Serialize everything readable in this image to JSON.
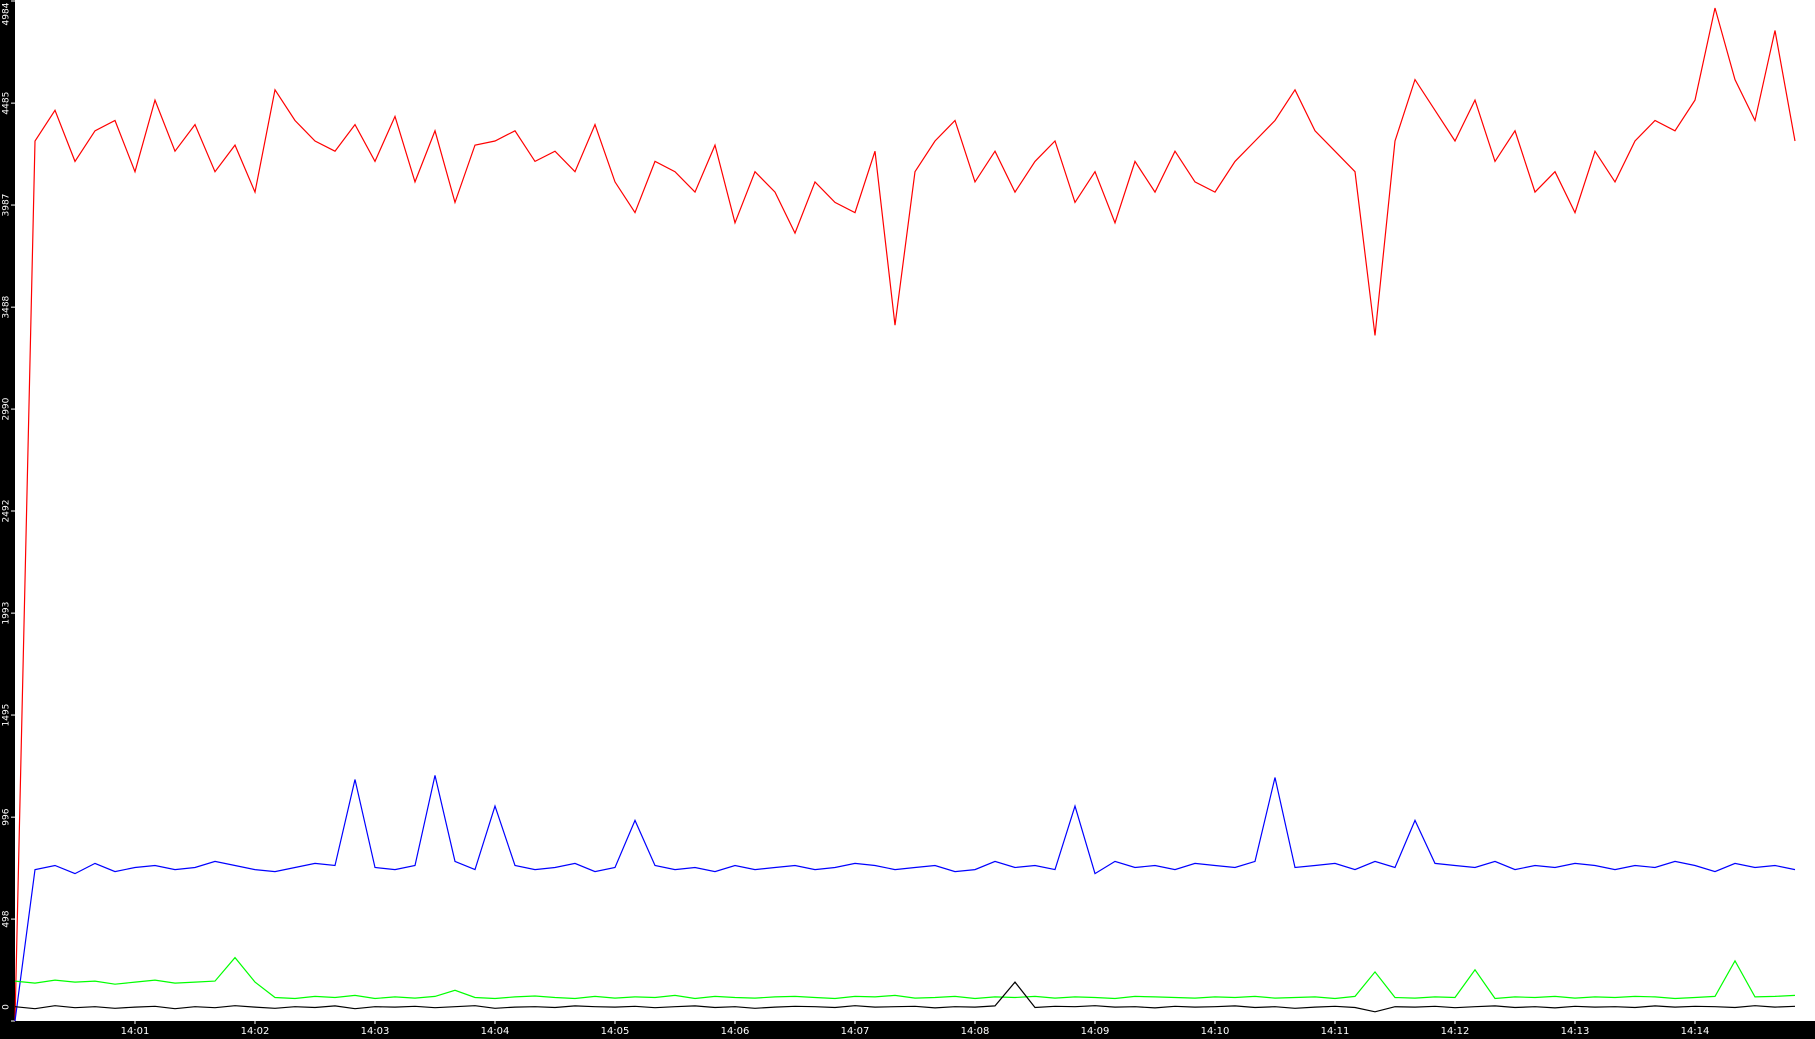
{
  "chart_data": {
    "type": "line",
    "categories": [
      null,
      null,
      null,
      null,
      null,
      null,
      "14:01",
      null,
      null,
      null,
      null,
      null,
      "14:02",
      null,
      null,
      null,
      null,
      null,
      "14:03",
      null,
      null,
      null,
      null,
      null,
      "14:04",
      null,
      null,
      null,
      null,
      null,
      "14:05",
      null,
      null,
      null,
      null,
      null,
      "14:06",
      null,
      null,
      null,
      null,
      null,
      "14:07",
      null,
      null,
      null,
      null,
      null,
      "14:08",
      null,
      null,
      null,
      null,
      null,
      "14:09",
      null,
      null,
      null,
      null,
      null,
      "14:10",
      null,
      null,
      null,
      null,
      null,
      "14:11",
      null,
      null,
      null,
      null,
      null,
      "14:12",
      null,
      null,
      null,
      null,
      null,
      "14:13",
      null,
      null,
      null,
      null,
      null,
      "14:14",
      null,
      null,
      null,
      null,
      null
    ],
    "series": [
      {
        "color": "#ff0000",
        "values": [
          0,
          4300,
          4450,
          4200,
          4350,
          4400,
          4150,
          4500,
          4250,
          4380,
          4150,
          4280,
          4050,
          4550,
          4400,
          4300,
          4250,
          4380,
          4200,
          4420,
          4100,
          4350,
          4000,
          4280,
          4300,
          4350,
          4200,
          4250,
          4150,
          4380,
          4100,
          3950,
          4200,
          4150,
          4050,
          4280,
          3900,
          4150,
          4050,
          3850,
          4100,
          4000,
          3950,
          4250,
          3400,
          4150,
          4300,
          4400,
          4100,
          4250,
          4050,
          4200,
          4300,
          4000,
          4150,
          3900,
          4200,
          4050,
          4250,
          4100,
          4050,
          4200,
          4300,
          4400,
          4550,
          4350,
          4250,
          4150,
          3350,
          4300,
          4600,
          4450,
          4300,
          4500,
          4200,
          4350,
          4050,
          4150,
          3950,
          4250,
          4100,
          4300,
          4400,
          4350,
          4500,
          4950,
          4600,
          4400,
          4840,
          4300
        ]
      },
      {
        "color": "#0000ff",
        "values": [
          0,
          740,
          760,
          720,
          770,
          730,
          750,
          760,
          740,
          750,
          780,
          760,
          740,
          730,
          750,
          770,
          760,
          1180,
          750,
          740,
          760,
          1200,
          780,
          740,
          1050,
          760,
          740,
          750,
          770,
          730,
          750,
          980,
          760,
          740,
          750,
          730,
          760,
          740,
          750,
          760,
          740,
          750,
          770,
          760,
          740,
          750,
          760,
          730,
          740,
          780,
          750,
          760,
          740,
          1050,
          720,
          780,
          750,
          760,
          740,
          770,
          760,
          750,
          780,
          1190,
          750,
          760,
          770,
          740,
          780,
          750,
          980,
          770,
          760,
          750,
          780,
          740,
          760,
          750,
          770,
          760,
          740,
          760,
          750,
          780,
          760,
          730,
          770,
          750,
          760,
          740
        ]
      },
      {
        "color": "#00ff00",
        "values": [
          195,
          185,
          200,
          190,
          195,
          180,
          190,
          200,
          185,
          190,
          195,
          310,
          190,
          115,
          110,
          120,
          115,
          125,
          110,
          118,
          112,
          120,
          150,
          115,
          110,
          118,
          122,
          115,
          110,
          120,
          112,
          118,
          115,
          125,
          110,
          120,
          115,
          112,
          118,
          120,
          115,
          110,
          120,
          118,
          125,
          112,
          115,
          120,
          110,
          118,
          115,
          120,
          112,
          118,
          115,
          110,
          120,
          118,
          115,
          112,
          118,
          115,
          120,
          112,
          115,
          118,
          110,
          120,
          240,
          115,
          112,
          118,
          115,
          250,
          110,
          118,
          115,
          120,
          112,
          118,
          115,
          120,
          118,
          110,
          115,
          120,
          294,
          118,
          120,
          125
        ]
      },
      {
        "color": "#000000",
        "values": [
          70,
          60,
          75,
          65,
          70,
          62,
          68,
          72,
          60,
          70,
          65,
          75,
          68,
          62,
          70,
          66,
          74,
          60,
          70,
          68,
          72,
          65,
          70,
          75,
          62,
          68,
          70,
          66,
          74,
          70,
          68,
          72,
          65,
          70,
          74,
          66,
          70,
          62,
          68,
          72,
          70,
          66,
          75,
          68,
          70,
          72,
          64,
          70,
          68,
          74,
          190,
          66,
          72,
          70,
          75,
          68,
          70,
          64,
          72,
          68,
          70,
          74,
          66,
          70,
          62,
          68,
          72,
          66,
          45,
          70,
          68,
          72,
          65,
          70,
          74,
          66,
          70,
          64,
          72,
          68,
          70,
          66,
          74,
          68,
          72,
          70,
          66,
          75,
          68,
          72
        ]
      }
    ],
    "ylim": [
      0,
      4984
    ],
    "yticks": [
      0,
      498,
      996,
      1495,
      1993,
      2492,
      2990,
      3488,
      3987,
      4485,
      4984
    ],
    "grid": false
  }
}
